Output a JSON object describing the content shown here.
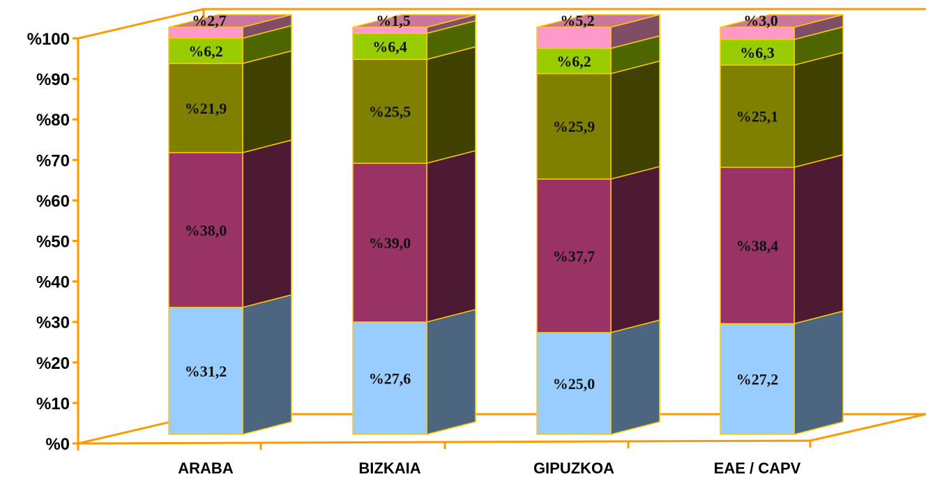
{
  "chart_data": {
    "type": "bar",
    "stacked": true,
    "style": "3d",
    "categories": [
      "ARABA",
      "BIZKAIA",
      "GIPUZKOA",
      "EAE / CAPV"
    ],
    "series": [
      {
        "values": [
          31.2,
          27.6,
          25.0,
          27.2
        ],
        "labels": [
          "%31,2",
          "%27,6",
          "%25,0",
          "%27,2"
        ]
      },
      {
        "values": [
          38.0,
          39.0,
          37.7,
          38.4
        ],
        "labels": [
          "%38,0",
          "%39,0",
          "%37,7",
          "%38,4"
        ]
      },
      {
        "values": [
          21.9,
          25.5,
          25.9,
          25.1
        ],
        "labels": [
          "%21,9",
          "%25,5",
          "%25,9",
          "%25,1"
        ]
      },
      {
        "values": [
          6.2,
          6.4,
          6.2,
          6.3
        ],
        "labels": [
          "%6,2",
          "%6,4",
          "%6,2",
          "%6,3"
        ]
      },
      {
        "values": [
          2.7,
          1.5,
          5.2,
          3.0
        ],
        "labels": [
          "%2,7",
          "%1,5",
          "%5,2",
          "%3,0"
        ]
      }
    ],
    "colors": {
      "front": [
        "#99ccff",
        "#993366",
        "#808000",
        "#99cc00",
        "#ff99cc"
      ],
      "side": [
        "#4d6680",
        "#4d1a33",
        "#404000",
        "#4d6600",
        "#804d66"
      ],
      "top": [
        "#7799cc",
        "#77264d",
        "#606000",
        "#77aa00",
        "#cc7799"
      ],
      "edge": "#ffcc00",
      "axis": "#ff9900"
    },
    "y_ticks": [
      "%0",
      "%10",
      "%20",
      "%30",
      "%40",
      "%50",
      "%60",
      "%70",
      "%80",
      "%90",
      "%100"
    ],
    "ylim": [
      0,
      100
    ],
    "legend": "none",
    "grid": false
  }
}
